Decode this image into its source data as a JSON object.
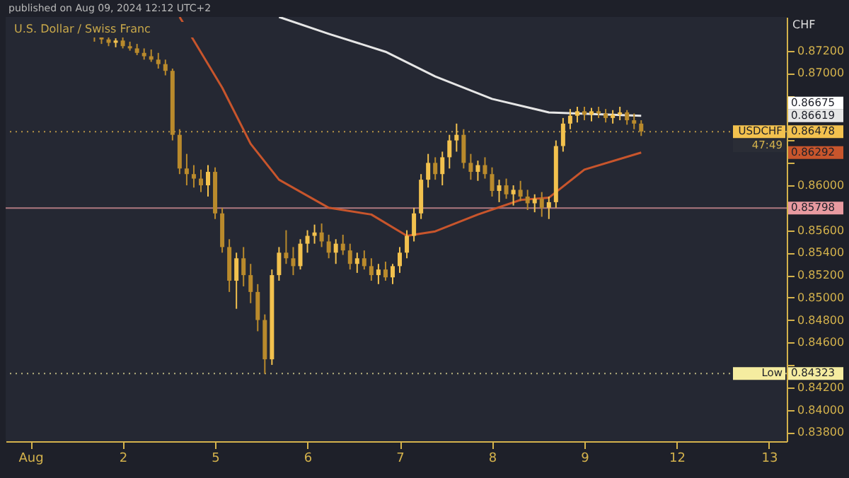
{
  "chart_data": {
    "type": "candlestick",
    "title": "U.S. Dollar / Swiss Franc",
    "ylabel": "CHF",
    "categories": [
      null,
      null,
      "Aug",
      null,
      null,
      null,
      null,
      null,
      null,
      null,
      null,
      null,
      null,
      null,
      null,
      "2",
      null,
      null,
      null,
      null,
      null,
      null,
      null,
      null,
      null,
      null,
      null,
      null,
      "5",
      null,
      null,
      null,
      null,
      null,
      null,
      null,
      null,
      null,
      null,
      null,
      null,
      "6",
      null,
      null,
      null,
      null,
      null,
      null,
      null,
      null,
      null,
      null,
      null,
      null,
      "7",
      null,
      null,
      null,
      null,
      null,
      null,
      null,
      null,
      null,
      null,
      null,
      null,
      "8",
      null,
      null,
      null,
      null,
      null,
      null,
      null,
      null,
      null,
      null,
      null,
      null,
      "9",
      null,
      null,
      null,
      null,
      null,
      null,
      null,
      null,
      null,
      null,
      null,
      null,
      "12",
      null,
      null,
      null,
      null,
      null,
      null,
      null,
      null,
      null,
      null,
      null,
      null,
      "13",
      null
    ],
    "ohlc": [
      null,
      null,
      null,
      null,
      null,
      null,
      null,
      null,
      null,
      null,
      null,
      [
        0.8735,
        0.8743,
        0.8728,
        0.8732
      ],
      [
        0.8732,
        0.874,
        0.8726,
        0.873
      ],
      [
        0.873,
        0.8734,
        0.8724,
        0.8727
      ],
      [
        0.8727,
        0.8731,
        0.8723,
        0.8729
      ],
      [
        0.8729,
        0.8732,
        0.8722,
        0.8724
      ],
      [
        0.8724,
        0.8728,
        0.872,
        0.8722
      ],
      [
        0.8722,
        0.8726,
        0.8716,
        0.8718
      ],
      [
        0.8718,
        0.8722,
        0.8712,
        0.8715
      ],
      [
        0.8715,
        0.8721,
        0.871,
        0.8712
      ],
      [
        0.8712,
        0.8718,
        0.8704,
        0.8708
      ],
      [
        0.8708,
        0.8712,
        0.8698,
        0.8702
      ],
      [
        0.8702,
        0.8704,
        0.864,
        0.8645
      ],
      [
        0.8645,
        0.865,
        0.861,
        0.8615
      ],
      [
        0.8615,
        0.8628,
        0.86,
        0.861
      ],
      [
        0.861,
        0.8618,
        0.8598,
        0.8606
      ],
      [
        0.8606,
        0.8614,
        0.8594,
        0.86
      ],
      [
        0.86,
        0.8618,
        0.859,
        0.8612
      ],
      [
        0.8612,
        0.8616,
        0.857,
        0.8575
      ],
      [
        0.8575,
        0.858,
        0.854,
        0.8545
      ],
      [
        0.8545,
        0.8552,
        0.8505,
        0.8515
      ],
      [
        0.8515,
        0.854,
        0.849,
        0.8535
      ],
      [
        0.8535,
        0.8545,
        0.851,
        0.852
      ],
      [
        0.852,
        0.853,
        0.8495,
        0.8505
      ],
      [
        0.8505,
        0.8512,
        0.847,
        0.848
      ],
      [
        0.848,
        0.8485,
        0.8432,
        0.8445
      ],
      [
        0.8445,
        0.8525,
        0.844,
        0.852
      ],
      [
        0.852,
        0.8545,
        0.8515,
        0.854
      ],
      [
        0.854,
        0.856,
        0.853,
        0.8535
      ],
      [
        0.8535,
        0.8545,
        0.852,
        0.8528
      ],
      [
        0.8528,
        0.8552,
        0.8525,
        0.8548
      ],
      [
        0.8548,
        0.856,
        0.854,
        0.8555
      ],
      [
        0.8555,
        0.8565,
        0.8548,
        0.8558
      ],
      [
        0.8558,
        0.8566,
        0.8545,
        0.855
      ],
      [
        0.855,
        0.8556,
        0.8535,
        0.854
      ],
      [
        0.854,
        0.8552,
        0.853,
        0.8548
      ],
      [
        0.8548,
        0.8556,
        0.8538,
        0.8542
      ],
      [
        0.8542,
        0.8548,
        0.8525,
        0.853
      ],
      [
        0.853,
        0.854,
        0.8522,
        0.8535
      ],
      [
        0.8535,
        0.8542,
        0.8525,
        0.8528
      ],
      [
        0.8528,
        0.8535,
        0.8515,
        0.852
      ],
      [
        0.852,
        0.853,
        0.8512,
        0.8525
      ],
      [
        0.8525,
        0.8532,
        0.8515,
        0.8518
      ],
      [
        0.8518,
        0.853,
        0.8512,
        0.8528
      ],
      [
        0.8528,
        0.8545,
        0.8522,
        0.854
      ],
      [
        0.854,
        0.856,
        0.8535,
        0.8555
      ],
      [
        0.8555,
        0.858,
        0.855,
        0.8575
      ],
      [
        0.8575,
        0.861,
        0.857,
        0.8605
      ],
      [
        0.8605,
        0.8628,
        0.8598,
        0.862
      ],
      [
        0.862,
        0.8625,
        0.8605,
        0.861
      ],
      [
        0.861,
        0.863,
        0.86,
        0.8625
      ],
      [
        0.8625,
        0.8645,
        0.8615,
        0.864
      ],
      [
        0.864,
        0.8655,
        0.863,
        0.8645
      ],
      [
        0.8645,
        0.865,
        0.8615,
        0.862
      ],
      [
        0.862,
        0.8628,
        0.8605,
        0.8612
      ],
      [
        0.8612,
        0.8622,
        0.8604,
        0.8618
      ],
      [
        0.8618,
        0.8625,
        0.8606,
        0.861
      ],
      [
        0.861,
        0.8616,
        0.859,
        0.8595
      ],
      [
        0.8595,
        0.8605,
        0.8585,
        0.86
      ],
      [
        0.86,
        0.8606,
        0.8588,
        0.8592
      ],
      [
        0.8592,
        0.86,
        0.8582,
        0.8596
      ],
      [
        0.8596,
        0.8604,
        0.8586,
        0.859
      ],
      [
        0.859,
        0.8596,
        0.8578,
        0.8584
      ],
      [
        0.8584,
        0.8592,
        0.8576,
        0.8588
      ],
      [
        0.8588,
        0.8594,
        0.8572,
        0.858
      ],
      [
        0.858,
        0.859,
        0.857,
        0.8585
      ],
      [
        0.8585,
        0.864,
        0.858,
        0.8635
      ],
      [
        0.8635,
        0.866,
        0.863,
        0.8655
      ],
      [
        0.8655,
        0.8668,
        0.865,
        0.8662
      ],
      [
        0.8662,
        0.867,
        0.8656,
        0.8666
      ],
      [
        0.8666,
        0.867,
        0.8658,
        0.8663
      ],
      [
        0.8663,
        0.8669,
        0.8657,
        0.8666
      ],
      [
        0.8666,
        0.867,
        0.866,
        0.8664
      ],
      [
        0.8664,
        0.8668,
        0.8656,
        0.866
      ],
      [
        0.866,
        0.8667,
        0.8655,
        0.8663
      ],
      [
        0.8663,
        0.867,
        0.8658,
        0.8665
      ],
      [
        0.8665,
        0.8667,
        0.8654,
        0.8658
      ],
      [
        0.8658,
        0.8664,
        0.865,
        0.8655
      ],
      [
        0.8655,
        0.8658,
        0.8644,
        0.8648
      ],
      null,
      null,
      null,
      null,
      null,
      null,
      null,
      null,
      null,
      null,
      null,
      null,
      null,
      null,
      null,
      null,
      null,
      null,
      null
    ],
    "colors": [
      null,
      null,
      null,
      null,
      null,
      null,
      null,
      null,
      null,
      null,
      null,
      "#b98a2c",
      "#b98a2c",
      "#b98a2c",
      "#f2c14e",
      "#b98a2c",
      "#b98a2c",
      "#b98a2c",
      "#b98a2c",
      "#b98a2c",
      "#b98a2c",
      "#b98a2c",
      "#b98a2c",
      "#b98a2c",
      "#b98a2c",
      "#b98a2c",
      "#b98a2c",
      "#f2c14e",
      "#b98a2c",
      "#b98a2c",
      "#b98a2c",
      "#f2c14e",
      "#b98a2c",
      "#b98a2c",
      "#b98a2c",
      "#b98a2c",
      "#f2c14e",
      "#f2c14e",
      "#b98a2c",
      "#b98a2c",
      "#f2c14e",
      "#f2c14e",
      "#f2c14e",
      "#b98a2c",
      "#b98a2c",
      "#f2c14e",
      "#b98a2c",
      "#b98a2c",
      "#f2c14e",
      "#b98a2c",
      "#b98a2c",
      "#f2c14e",
      "#b98a2c",
      "#f2c14e",
      "#f2c14e",
      "#f2c14e",
      "#f2c14e",
      "#f2c14e",
      "#f2c14e",
      "#b98a2c",
      "#f2c14e",
      "#f2c14e",
      "#f2c14e",
      "#b98a2c",
      "#b98a2c",
      "#f2c14e",
      "#b98a2c",
      "#b98a2c",
      "#f2c14e",
      "#b98a2c",
      "#f2c14e",
      "#b98a2c",
      "#b98a2c",
      "#f2c14e",
      "#b98a2c",
      "#f2c14e",
      "#f2c14e",
      "#f2c14e",
      "#f2c14e",
      "#f2c14e",
      "#b98a2c",
      "#f2c14e",
      "#b98a2c",
      "#b98a2c",
      "#f2c14e",
      "#f2c14e",
      "#b98a2c",
      "#b98a2c",
      "#b98a2c",
      null,
      null,
      null,
      null,
      null,
      null,
      null,
      null,
      null,
      null,
      null,
      null,
      null,
      null,
      null,
      null,
      null,
      null,
      null
    ],
    "series": [
      {
        "type": "line",
        "color": "#e6e6e6",
        "values": [
          null,
          null,
          null,
          null,
          null,
          null,
          null,
          null,
          null,
          null,
          null,
          null,
          null,
          null,
          null,
          null,
          null,
          null,
          null,
          null,
          null,
          null,
          null,
          null,
          null,
          null,
          null,
          null,
          null,
          null,
          null,
          null,
          null,
          null,
          null,
          null,
          null,
          0.875,
          null,
          null,
          null,
          null,
          null,
          null,
          0.8735,
          null,
          null,
          null,
          null,
          null,
          null,
          null,
          0.8719,
          null,
          null,
          null,
          null,
          null,
          null,
          0.8697,
          null,
          null,
          null,
          null,
          null,
          null,
          null,
          0.8677,
          null,
          null,
          null,
          null,
          null,
          null,
          null,
          0.8665,
          null,
          null,
          null,
          null,
          null,
          null,
          null,
          null,
          null,
          null,
          null,
          null,
          0.86619,
          null,
          null,
          null,
          null,
          null,
          null,
          null,
          null,
          null,
          null,
          null,
          null,
          null,
          null,
          null,
          null,
          null,
          null,
          null
        ]
      },
      {
        "type": "line",
        "color": "#c8552c",
        "values": [
          null,
          null,
          null,
          null,
          null,
          null,
          null,
          null,
          null,
          null,
          null,
          null,
          null,
          null,
          null,
          null,
          null,
          null,
          null,
          null,
          null,
          null,
          null,
          0.875,
          null,
          null,
          null,
          null,
          null,
          0.8687,
          null,
          null,
          null,
          0.8637,
          null,
          null,
          null,
          0.8605,
          null,
          null,
          null,
          null,
          null,
          null,
          0.858,
          null,
          null,
          null,
          null,
          null,
          0.8574,
          null,
          null,
          null,
          null,
          0.8555,
          null,
          null,
          null,
          0.8559,
          null,
          null,
          null,
          null,
          null,
          0.8574,
          null,
          null,
          null,
          null,
          null,
          0.8587,
          null,
          null,
          null,
          0.8589,
          null,
          null,
          null,
          null,
          0.8614,
          null,
          null,
          null,
          null,
          null,
          null,
          null,
          0.86292,
          null,
          null,
          null,
          null,
          null,
          null,
          null,
          null,
          null,
          null,
          null,
          null,
          null,
          null,
          null,
          null,
          null,
          null,
          null
        ]
      }
    ],
    "ylim": [
      0.8372,
      0.875
    ],
    "yticks": [
      {
        "value": 0.838,
        "label": "0.83800"
      },
      {
        "value": 0.84,
        "label": "0.84000"
      },
      {
        "value": 0.842,
        "label": "0.84200"
      },
      {
        "value": 0.844,
        "label": null
      },
      {
        "value": 0.846,
        "label": "0.84600"
      },
      {
        "value": 0.848,
        "label": "0.84800"
      },
      {
        "value": 0.85,
        "label": "0.85000"
      },
      {
        "value": 0.852,
        "label": "0.85200"
      },
      {
        "value": 0.854,
        "label": "0.85400"
      },
      {
        "value": 0.856,
        "label": "0.85600"
      },
      {
        "value": 0.858,
        "label": null
      },
      {
        "value": 0.86,
        "label": "0.86000"
      },
      {
        "value": 0.862,
        "label": null
      },
      {
        "value": 0.864,
        "label": null
      },
      {
        "value": 0.866,
        "label": null
      },
      {
        "value": 0.868,
        "label": null
      },
      {
        "value": 0.87,
        "label": "0.87000"
      },
      {
        "value": 0.872,
        "label": "0.87200"
      }
    ],
    "ref_lines": [
      {
        "axis": "y",
        "value": 0.86478,
        "label": "0.86478",
        "color": "#f2c14e",
        "line_style": "dotted"
      },
      {
        "axis": "y",
        "value": 0.85798,
        "label": "0.85798",
        "color": "#e89aa0",
        "line_style": "solid"
      },
      {
        "axis": "y",
        "value": 0.84323,
        "label": "0.84323",
        "color": "#f5eca0",
        "line_style": "dotted"
      }
    ],
    "annotations": [
      "published on Aug 09, 2024 12:12 UTC+2",
      "0.86675",
      "0.86619",
      "47:49",
      "0.86292",
      {
        "text": "USDCHF",
        "y": 0.86478
      },
      {
        "text": "Low",
        "y": 0.84323
      }
    ]
  }
}
